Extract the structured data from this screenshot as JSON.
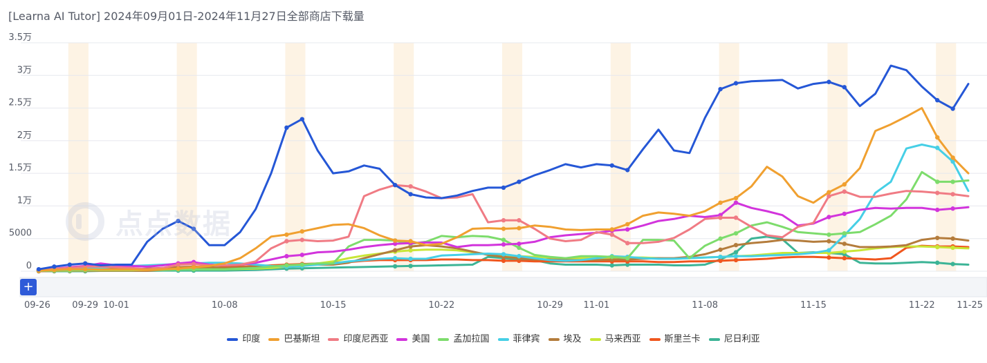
{
  "title": "[Learna AI Tutor] 2024年09月01日-2024年11月27日全部商店下载量",
  "watermark_text": "点点数据",
  "zoom_button": "+",
  "chart_data": {
    "type": "line",
    "ylim": [
      0,
      35000
    ],
    "yticks": [
      {
        "value": 0,
        "label": "0"
      },
      {
        "value": 5000,
        "label": "5000"
      },
      {
        "value": 10000,
        "label": "1万"
      },
      {
        "value": 15000,
        "label": "1.5万"
      },
      {
        "value": 20000,
        "label": "2万"
      },
      {
        "value": 25000,
        "label": "2.5万"
      },
      {
        "value": 30000,
        "label": "3万"
      },
      {
        "value": 35000,
        "label": "3.5万"
      }
    ],
    "x_dates": [
      "09-26",
      "09-27",
      "09-28",
      "09-29",
      "09-30",
      "10-01",
      "10-02",
      "10-03",
      "10-04",
      "10-05",
      "10-06",
      "10-07",
      "10-08",
      "10-09",
      "10-10",
      "10-11",
      "10-12",
      "10-13",
      "10-14",
      "10-15",
      "10-16",
      "10-17",
      "10-18",
      "10-19",
      "10-20",
      "10-21",
      "10-22",
      "10-23",
      "10-24",
      "10-25",
      "10-26",
      "10-27",
      "10-28",
      "10-29",
      "10-30",
      "10-31",
      "11-01",
      "11-02",
      "11-03",
      "11-04",
      "11-05",
      "11-06",
      "11-07",
      "11-08",
      "11-09",
      "11-10",
      "11-11",
      "11-12",
      "11-13",
      "11-14",
      "11-15",
      "11-16",
      "11-17",
      "11-18",
      "11-19",
      "11-20",
      "11-21",
      "11-22",
      "11-23",
      "11-24",
      "11-25"
    ],
    "xtick_labels": [
      "09-26",
      "09-29",
      "10-01",
      "10-08",
      "10-15",
      "10-22",
      "10-29",
      "11-01",
      "11-08",
      "11-15",
      "11-22",
      "11-25"
    ],
    "weekend_bands": [
      "09-28",
      "10-05",
      "10-12",
      "10-19",
      "10-26",
      "11-02",
      "11-09",
      "11-16",
      "11-23"
    ],
    "series": [
      {
        "name": "印度",
        "color": "#2557d6",
        "values": [
          300,
          700,
          1000,
          1200,
          900,
          1000,
          1000,
          4500,
          6500,
          7700,
          6500,
          4000,
          4000,
          6000,
          9500,
          15000,
          22000,
          23300,
          18500,
          15000,
          15300,
          16200,
          15700,
          13200,
          11800,
          11300,
          11200,
          11600,
          12300,
          12800,
          12800,
          13700,
          14700,
          15500,
          16400,
          15900,
          16400,
          16200,
          15500,
          18700,
          21700,
          18500,
          18100,
          23500,
          27900,
          28800,
          29100,
          29200,
          29300,
          28000,
          28700,
          29000,
          28200,
          25300,
          27200,
          31500,
          30800,
          28300,
          26200,
          24900,
          28700
        ]
      },
      {
        "name": "巴基斯坦",
        "color": "#f0a030",
        "values": [
          100,
          200,
          300,
          300,
          250,
          250,
          250,
          200,
          300,
          400,
          600,
          800,
          1200,
          2000,
          3500,
          5300,
          5600,
          6100,
          6600,
          7100,
          7200,
          6600,
          5500,
          4700,
          4600,
          4000,
          4200,
          5200,
          6500,
          6600,
          6500,
          6600,
          7000,
          6800,
          6400,
          6300,
          6400,
          6400,
          7200,
          8500,
          9000,
          8800,
          8500,
          9200,
          10500,
          11200,
          13000,
          16000,
          14500,
          11500,
          10500,
          12100,
          13300,
          15800,
          21500,
          22500,
          23700,
          25000,
          20500,
          17400,
          15000
        ]
      },
      {
        "name": "印度尼西亚",
        "color": "#f07b84",
        "values": [
          200,
          400,
          500,
          700,
          700,
          600,
          500,
          300,
          500,
          1000,
          1100,
          900,
          900,
          1000,
          1500,
          3500,
          4600,
          4800,
          4600,
          4700,
          5300,
          11500,
          12500,
          13200,
          13000,
          12200,
          11200,
          11300,
          11800,
          7500,
          7800,
          7800,
          6500,
          5000,
          4600,
          4800,
          6000,
          5600,
          4300,
          4300,
          4500,
          5100,
          6400,
          8000,
          8200,
          8200,
          6800,
          5500,
          5200,
          6800,
          7400,
          11500,
          12200,
          11400,
          11400,
          11900,
          12300,
          12200,
          12000,
          11800,
          11500
        ]
      },
      {
        "name": "美国",
        "color": "#d234dc",
        "values": [
          200,
          400,
          600,
          800,
          1200,
          900,
          800,
          700,
          900,
          1200,
          1400,
          1000,
          900,
          1000,
          1300,
          1800,
          2300,
          2500,
          2900,
          3000,
          3300,
          3700,
          4000,
          4200,
          4300,
          4400,
          4400,
          3700,
          4000,
          4000,
          4100,
          4200,
          4500,
          5200,
          5500,
          5700,
          5900,
          6200,
          6400,
          7000,
          7700,
          8000,
          8500,
          8300,
          8600,
          10500,
          9700,
          9200,
          8600,
          7000,
          7300,
          8300,
          8800,
          9400,
          9700,
          9600,
          9700,
          9700,
          9400,
          9600,
          9800
        ]
      },
      {
        "name": "孟加拉国",
        "color": "#7ddc6c",
        "values": [
          50,
          100,
          100,
          150,
          200,
          200,
          200,
          200,
          200,
          250,
          300,
          300,
          300,
          400,
          500,
          700,
          900,
          1000,
          1200,
          1200,
          3800,
          4800,
          4800,
          4700,
          4200,
          4500,
          5400,
          5200,
          5400,
          5300,
          4800,
          3600,
          2500,
          2200,
          2000,
          2300,
          2300,
          2200,
          2000,
          4800,
          4800,
          4700,
          2000,
          3900,
          5000,
          5800,
          7000,
          7500,
          6800,
          6000,
          5800,
          5600,
          5800,
          6000,
          7200,
          8500,
          11000,
          15200,
          13700,
          13700,
          13900
        ]
      },
      {
        "name": "菲律宾",
        "color": "#46cfe6",
        "values": [
          100,
          200,
          300,
          400,
          500,
          700,
          800,
          900,
          1000,
          1100,
          1200,
          1300,
          1300,
          1200,
          1000,
          800,
          700,
          800,
          1000,
          1200,
          1500,
          1700,
          1900,
          2000,
          1900,
          1900,
          2400,
          2500,
          2600,
          2700,
          2600,
          2300,
          2000,
          1700,
          1600,
          1700,
          2000,
          2300,
          2200,
          2000,
          1900,
          1900,
          2000,
          2100,
          2200,
          2300,
          2300,
          2400,
          2500,
          2600,
          2800,
          3200,
          5500,
          8000,
          12000,
          13700,
          18800,
          19400,
          18900,
          16800,
          12300
        ]
      },
      {
        "name": "埃及",
        "color": "#b47c3c",
        "values": [
          100,
          200,
          200,
          300,
          400,
          400,
          300,
          400,
          500,
          600,
          700,
          600,
          500,
          600,
          700,
          800,
          900,
          1000,
          1000,
          1000,
          1300,
          2000,
          2600,
          3200,
          3800,
          4000,
          3800,
          3500,
          3000,
          2500,
          2200,
          2000,
          1800,
          1800,
          1700,
          1700,
          1700,
          1800,
          1800,
          1900,
          2000,
          2000,
          2200,
          2600,
          3300,
          4000,
          4300,
          4500,
          4800,
          4700,
          4500,
          4600,
          4200,
          3700,
          3700,
          3800,
          4000,
          4800,
          5100,
          5000,
          4700
        ]
      },
      {
        "name": "马来西亚",
        "color": "#c8e636",
        "values": [
          100,
          100,
          100,
          150,
          150,
          150,
          150,
          200,
          250,
          300,
          300,
          300,
          300,
          350,
          400,
          500,
          700,
          900,
          1200,
          1500,
          2000,
          2400,
          2700,
          3000,
          3200,
          3300,
          3300,
          3200,
          2900,
          2600,
          2400,
          2300,
          2200,
          2100,
          2000,
          2000,
          2000,
          2100,
          2100,
          2100,
          2000,
          1900,
          2000,
          2100,
          2200,
          2300,
          2400,
          2600,
          2800,
          2800,
          2800,
          2800,
          3000,
          3200,
          3500,
          3700,
          3800,
          3800,
          3700,
          3600,
          3500
        ]
      },
      {
        "name": "斯里兰卡",
        "color": "#f0561e",
        "values": [
          0,
          50,
          50,
          100,
          100,
          100,
          100,
          100,
          200,
          300,
          400,
          500,
          600,
          700,
          800,
          900,
          1000,
          1100,
          1200,
          1300,
          1400,
          1600,
          1700,
          1700,
          1700,
          1700,
          1800,
          1800,
          1700,
          1700,
          1600,
          1600,
          1500,
          1500,
          1500,
          1500,
          1500,
          1500,
          1500,
          1500,
          1400,
          1400,
          1500,
          1500,
          1600,
          1700,
          1800,
          1900,
          2100,
          2200,
          2200,
          2100,
          2000,
          1900,
          1800,
          2000,
          3600,
          3900,
          3800,
          3800,
          3700
        ]
      },
      {
        "name": "尼日利亚",
        "color": "#3cb496",
        "values": [
          0,
          0,
          0,
          0,
          50,
          50,
          50,
          50,
          100,
          100,
          100,
          100,
          100,
          150,
          200,
          300,
          400,
          450,
          500,
          550,
          600,
          650,
          700,
          750,
          800,
          850,
          900,
          950,
          1000,
          2200,
          2000,
          1800,
          1700,
          1200,
          1000,
          1000,
          1000,
          900,
          1000,
          1000,
          1000,
          900,
          900,
          1000,
          1800,
          2900,
          5000,
          5300,
          4900,
          2800,
          2900,
          2800,
          2600,
          1300,
          1200,
          1200,
          1300,
          1400,
          1300,
          1100,
          1000
        ]
      }
    ]
  }
}
